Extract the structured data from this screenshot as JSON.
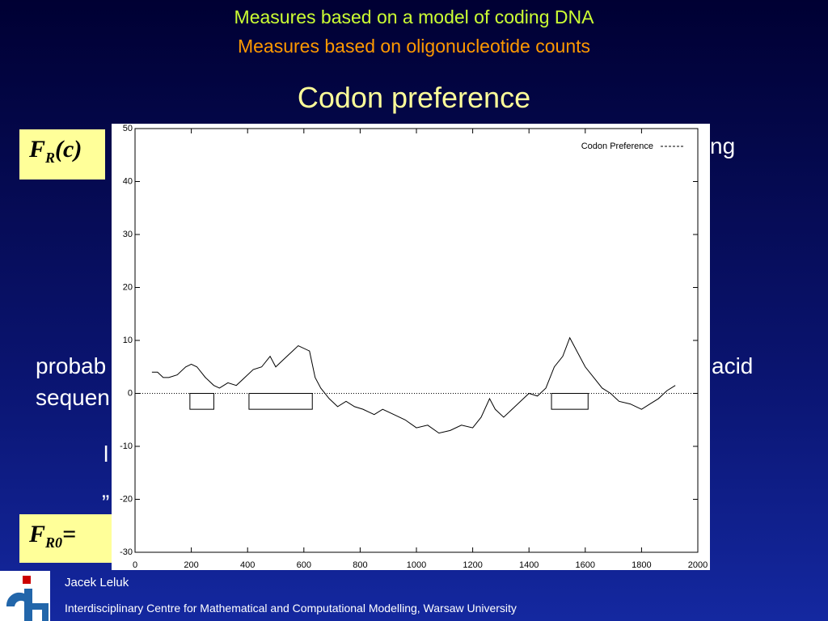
{
  "slide": {
    "heading_1": "Measures based on a model of coding DNA",
    "heading_2": "Measures based on oligonucleotide counts",
    "title": "Codon preference",
    "formula_1": {
      "base": "F",
      "sub": "R",
      "arg": "(c)"
    },
    "formula_2": {
      "base": "F",
      "sub": "R0",
      "rest": "= "
    },
    "fragments": [
      "ng",
      "probab",
      "acid",
      "sequen",
      "l",
      "„"
    ],
    "author": "Jacek Leluk",
    "institution": "Interdisciplinary Centre for Mathematical and Computational Modelling, Warsaw University"
  },
  "chart_data": {
    "type": "line",
    "x": [
      60,
      80,
      100,
      120,
      150,
      180,
      200,
      220,
      250,
      280,
      300,
      330,
      360,
      390,
      420,
      450,
      480,
      500,
      530,
      560,
      580,
      620,
      640,
      660,
      690,
      720,
      750,
      780,
      810,
      850,
      880,
      920,
      960,
      1000,
      1040,
      1080,
      1120,
      1160,
      1200,
      1230,
      1260,
      1280,
      1310,
      1340,
      1380,
      1400,
      1430,
      1460,
      1490,
      1520,
      1545,
      1570,
      1600,
      1630,
      1660,
      1690,
      1720,
      1760,
      1800,
      1830,
      1860,
      1890,
      1920
    ],
    "series": [
      {
        "name": "Codon Preference",
        "color": "#000000",
        "values": [
          4,
          4,
          3,
          3,
          3.5,
          5,
          5.5,
          5,
          3,
          1.5,
          1,
          2,
          1.5,
          3,
          4.5,
          5,
          7,
          5,
          6.5,
          8,
          9,
          8,
          3,
          1,
          -1,
          -2.5,
          -1.5,
          -2.5,
          -3,
          -4,
          -3,
          -4,
          -5,
          -6.5,
          -6,
          -7.5,
          -7,
          -6,
          -6.5,
          -4.5,
          -1,
          -3,
          -4.5,
          -3,
          -1,
          0,
          -0.5,
          1,
          5,
          7,
          10.5,
          8,
          5,
          3,
          1,
          0,
          -1.5,
          -2,
          -3,
          -2,
          -1,
          0.5,
          1.5
        ]
      }
    ],
    "boxes": [
      {
        "start": 195,
        "end": 280,
        "top": 0,
        "bottom": -3
      },
      {
        "start": 405,
        "end": 630,
        "top": 0,
        "bottom": -3
      },
      {
        "start": 1480,
        "end": 1610,
        "top": 0,
        "bottom": -3
      }
    ],
    "reference_line": 0,
    "xlim": [
      0,
      2000
    ],
    "xticks": [
      0,
      200,
      400,
      600,
      800,
      1000,
      1200,
      1400,
      1600,
      1800,
      2000
    ],
    "ylim": [
      -30,
      50
    ],
    "yticks": [
      -30,
      -20,
      -10,
      0,
      10,
      20,
      30,
      40,
      50
    ],
    "legend": "upper right"
  }
}
